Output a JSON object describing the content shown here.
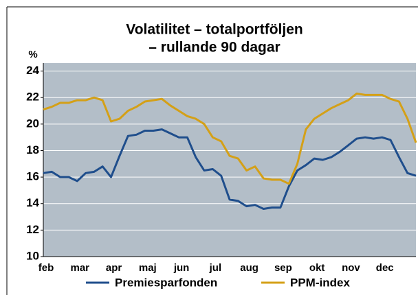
{
  "chart_data": {
    "type": "line",
    "title": [
      "Volatilitet – totalportföljen",
      "– rullande 90 dagar"
    ],
    "y_unit": "%",
    "categories": [
      "feb",
      null,
      null,
      null,
      "mar",
      null,
      null,
      null,
      "apr",
      null,
      null,
      null,
      "maj",
      null,
      null,
      null,
      "jun",
      null,
      null,
      null,
      "jul",
      null,
      null,
      null,
      "aug",
      null,
      null,
      null,
      "sep",
      null,
      null,
      null,
      "okt",
      null,
      null,
      null,
      "nov",
      null,
      null,
      null,
      "dec",
      null,
      null,
      null,
      null
    ],
    "series": [
      {
        "name": "Premiesparfonden",
        "color": "#1f4e8c",
        "values": [
          16.3,
          16.4,
          16.0,
          16.0,
          15.7,
          16.3,
          16.4,
          16.8,
          16.0,
          17.6,
          19.1,
          19.2,
          19.5,
          19.5,
          19.6,
          19.3,
          19.0,
          19.0,
          17.5,
          16.5,
          16.6,
          16.1,
          14.3,
          14.2,
          13.8,
          13.9,
          13.6,
          13.7,
          13.7,
          15.3,
          16.5,
          16.9,
          17.4,
          17.3,
          17.5,
          17.9,
          18.4,
          18.9,
          19.0,
          18.9,
          19.0,
          18.8,
          17.5,
          16.3,
          16.1
        ]
      },
      {
        "name": "PPM-index",
        "color": "#d4a017",
        "values": [
          21.1,
          21.3,
          21.6,
          21.6,
          21.8,
          21.8,
          22.0,
          21.8,
          20.2,
          20.4,
          21.0,
          21.3,
          21.7,
          21.8,
          21.9,
          21.4,
          21.0,
          20.6,
          20.4,
          20.0,
          19.0,
          18.7,
          17.6,
          17.4,
          16.5,
          16.8,
          15.9,
          15.8,
          15.8,
          15.5,
          17.0,
          19.6,
          20.4,
          20.8,
          21.2,
          21.5,
          21.8,
          22.3,
          22.2,
          22.2,
          22.2,
          21.9,
          21.7,
          20.4,
          18.6
        ]
      }
    ],
    "ylim": [
      10,
      24.6
    ],
    "yticks": [
      10,
      12,
      14,
      16,
      18,
      20,
      22,
      24
    ],
    "grid": true,
    "legend": "bottom"
  }
}
